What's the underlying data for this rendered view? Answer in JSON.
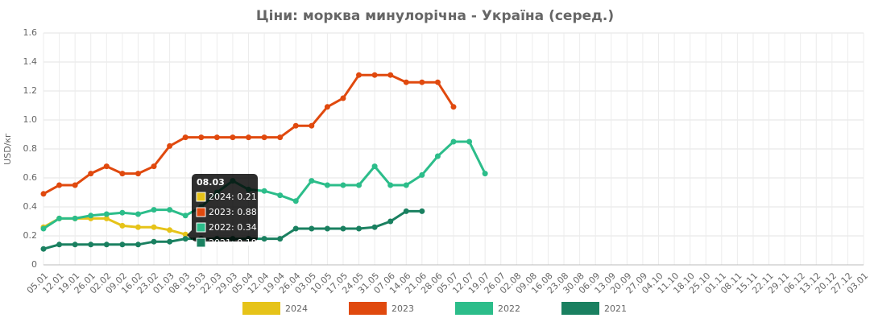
{
  "chart_data": {
    "type": "line",
    "title": "Ціни: морква минулорічна - Україна (серед.)",
    "y_label": "USD/кг",
    "categories": [
      "05.01",
      "12.01",
      "19.01",
      "26.01",
      "02.02",
      "09.02",
      "16.02",
      "23.02",
      "01.03",
      "08.03",
      "15.03",
      "22.03",
      "29.03",
      "05.04",
      "12.04",
      "19.04",
      "26.04",
      "03.05",
      "10.05",
      "17.05",
      "24.05",
      "31.05",
      "07.06",
      "14.06",
      "21.06",
      "28.06",
      "05.07",
      "12.07",
      "19.07",
      "26.07",
      "02.08",
      "09.08",
      "16.08",
      "23.08",
      "30.08",
      "06.09",
      "13.09",
      "20.09",
      "27.09",
      "04.10",
      "11.10",
      "18.10",
      "25.10",
      "01.11",
      "08.11",
      "15.11",
      "22.11",
      "29.11",
      "06.12",
      "13.12",
      "20.12",
      "27.12",
      "03.01"
    ],
    "series": [
      {
        "name": "2024",
        "color": "#e6c319",
        "values": [
          0.26,
          0.32,
          0.32,
          0.32,
          0.32,
          0.27,
          0.26,
          0.26,
          0.24,
          0.21,
          null,
          null,
          null,
          null,
          null,
          null,
          null,
          null,
          null,
          null,
          null,
          null,
          null,
          null,
          null,
          null,
          null,
          null,
          null,
          null,
          null,
          null,
          null,
          null,
          null,
          null,
          null,
          null,
          null,
          null,
          null,
          null,
          null,
          null,
          null,
          null,
          null,
          null,
          null,
          null,
          null,
          null,
          null
        ]
      },
      {
        "name": "2023",
        "color": "#e0490e",
        "values": [
          0.49,
          0.55,
          0.55,
          0.63,
          0.68,
          0.63,
          0.63,
          0.68,
          0.82,
          0.88,
          0.88,
          0.88,
          0.88,
          0.88,
          0.88,
          0.88,
          0.96,
          0.96,
          1.09,
          1.15,
          1.31,
          1.31,
          1.31,
          1.26,
          1.26,
          1.26,
          1.09,
          null,
          null,
          null,
          null,
          null,
          null,
          null,
          null,
          null,
          null,
          null,
          null,
          null,
          null,
          null,
          null,
          null,
          null,
          null,
          null,
          null,
          null,
          null,
          null,
          null,
          null
        ]
      },
      {
        "name": "2022",
        "color": "#2cbd8a",
        "values": [
          0.25,
          0.32,
          0.32,
          0.34,
          0.35,
          0.36,
          0.35,
          0.38,
          0.38,
          0.34,
          0.4,
          0.5,
          0.58,
          0.52,
          0.51,
          0.48,
          0.44,
          0.58,
          0.55,
          0.55,
          0.55,
          0.68,
          0.55,
          0.55,
          0.62,
          0.75,
          0.85,
          0.85,
          0.63,
          null,
          null,
          null,
          null,
          null,
          null,
          null,
          null,
          null,
          null,
          null,
          null,
          null,
          null,
          null,
          null,
          null,
          null,
          null,
          null,
          null,
          null,
          null,
          null
        ]
      },
      {
        "name": "2021",
        "color": "#1a8060",
        "values": [
          0.11,
          0.14,
          0.14,
          0.14,
          0.14,
          0.14,
          0.14,
          0.16,
          0.16,
          0.18,
          0.18,
          0.18,
          0.18,
          0.18,
          0.18,
          0.18,
          0.25,
          0.25,
          0.25,
          0.25,
          0.25,
          0.26,
          0.3,
          0.37,
          0.37,
          null,
          null,
          null,
          null,
          null,
          null,
          null,
          null,
          null,
          null,
          null,
          null,
          null,
          null,
          null,
          null,
          null,
          null,
          null,
          null,
          null,
          null,
          null,
          null,
          null,
          null,
          null,
          null
        ]
      }
    ],
    "ylim": [
      0,
      1.6
    ],
    "yticks": [
      0,
      0.2,
      0.4,
      0.6,
      0.8,
      {
        "value": 1,
        "label": "1.0"
      },
      1.2,
      1.4,
      1.6
    ],
    "grid": true,
    "legend": "bottom",
    "tooltip": {
      "title": "08.03",
      "items": [
        "2024: 0.21",
        "2023: 0.88",
        "2022: 0.34",
        "2021: 0.18"
      ]
    }
  }
}
